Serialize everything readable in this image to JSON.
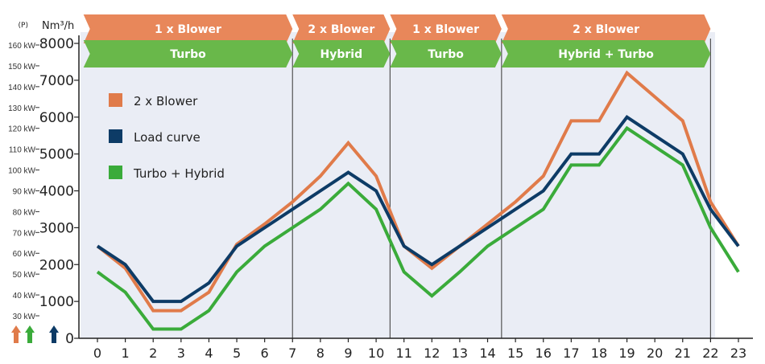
{
  "chart_data": {
    "type": "line",
    "x": [
      0,
      1,
      2,
      3,
      4,
      5,
      6,
      7,
      8,
      9,
      10,
      11,
      12,
      13,
      14,
      15,
      16,
      17,
      18,
      19,
      20,
      21,
      22,
      23
    ],
    "ylim": [
      0,
      8000
    ],
    "yticks": [
      0,
      1000,
      2000,
      3000,
      4000,
      5000,
      6000,
      7000,
      8000
    ],
    "y_unit_label": "Nm³/h",
    "power_axis_prefix": "(P)",
    "power_ticks": [
      "30 kW",
      "40 kW",
      "50 kW",
      "60 kW",
      "70 kW",
      "80 kW",
      "90 kW",
      "100 kW",
      "110 kW",
      "120 kW",
      "130 kW",
      "140 kW",
      "150 kW",
      "160 kW"
    ],
    "series": [
      {
        "name": "2 x Blower",
        "color": "#e07b4a",
        "values": [
          2500,
          1900,
          750,
          750,
          1250,
          2550,
          3100,
          3700,
          4400,
          5300,
          4400,
          2500,
          1900,
          2500,
          3100,
          3700,
          4400,
          5900,
          5900,
          7200,
          6550,
          5900,
          3700,
          2500
        ]
      },
      {
        "name": "Load curve",
        "color": "#0d3b66",
        "values": [
          2500,
          2000,
          1000,
          1000,
          1500,
          2500,
          3000,
          3500,
          4000,
          4500,
          4000,
          2500,
          2000,
          2500,
          3000,
          3500,
          4000,
          5000,
          5000,
          6000,
          5500,
          5000,
          3500,
          2500
        ]
      },
      {
        "name": "Turbo + Hybrid",
        "color": "#3aab3a",
        "values": [
          1800,
          1250,
          250,
          250,
          750,
          1800,
          2500,
          3000,
          3500,
          4200,
          3500,
          1800,
          1150,
          1800,
          2500,
          3000,
          3500,
          4700,
          4700,
          5700,
          5200,
          4700,
          3000,
          1800
        ]
      }
    ],
    "phase_dividers": [
      7,
      10.5,
      14.5,
      22
    ],
    "top_bands": [
      {
        "label": "1 x Blower",
        "from": -0.5,
        "to": 7
      },
      {
        "label": "2 x Blower",
        "from": 7,
        "to": 10.5
      },
      {
        "label": "1 x Blower",
        "from": 10.5,
        "to": 14.5
      },
      {
        "label": "2 x Blower",
        "from": 14.5,
        "to": 22
      }
    ],
    "bottom_bands": [
      {
        "label": "Turbo",
        "from": -0.5,
        "to": 7
      },
      {
        "label": "Hybrid",
        "from": 7,
        "to": 10.5
      },
      {
        "label": "Turbo",
        "from": 10.5,
        "to": 14.5
      },
      {
        "label": "Hybrid + Turbo",
        "from": 14.5,
        "to": 22
      }
    ],
    "band_colors": {
      "top": "#e8875a",
      "bottom": "#69b84a",
      "plot_bg": "#eaedf5",
      "divider": "#555555"
    },
    "arrow_colors": [
      "#e07b4a",
      "#3aab3a",
      "#0d3b66"
    ]
  }
}
